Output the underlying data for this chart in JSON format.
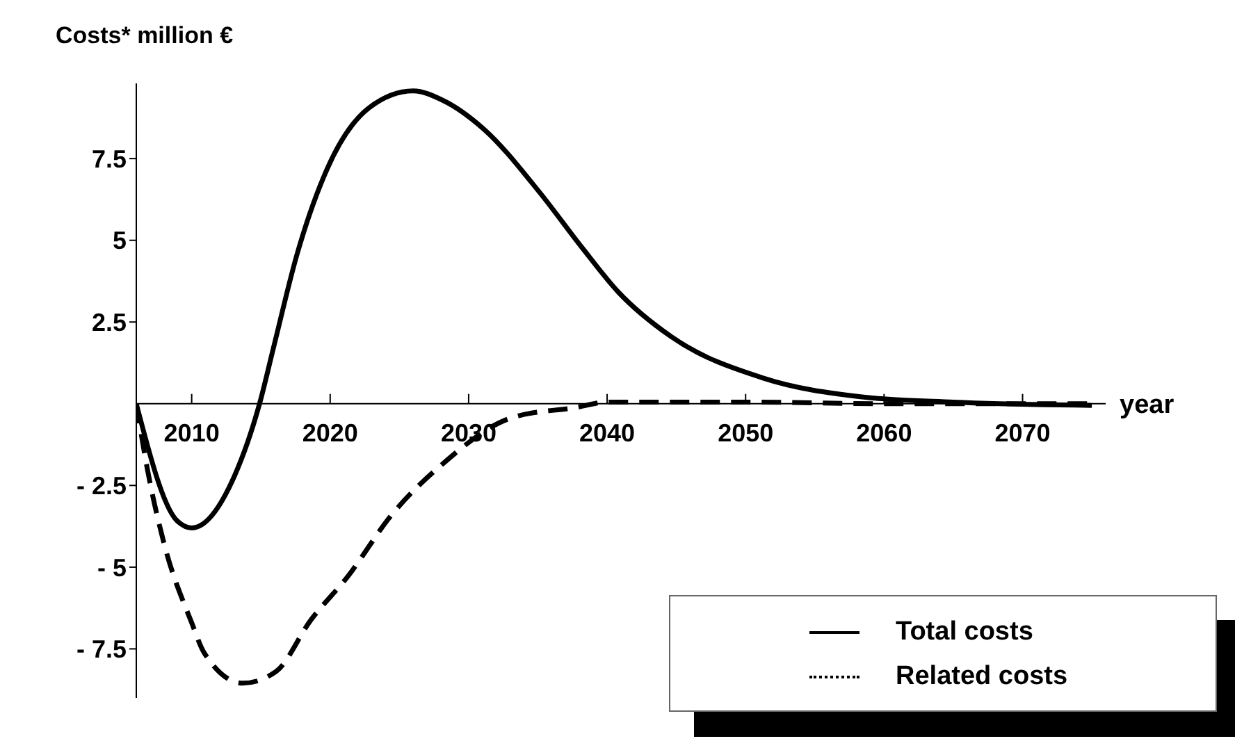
{
  "chart_data": {
    "type": "line",
    "title": "Costs* million €",
    "xlabel": "year",
    "xlim": [
      2006,
      2076
    ],
    "xticks": [
      2010,
      2020,
      2030,
      2040,
      2050,
      2060,
      2070
    ],
    "ylim": [
      -9,
      9.8
    ],
    "yticks": [
      {
        "value": -7.5,
        "label": "- 7.5"
      },
      {
        "value": -5,
        "label": "- 5"
      },
      {
        "value": -2.5,
        "label": "- 2.5"
      },
      7.5,
      5,
      2.5
    ],
    "legend": "bottom right",
    "grid": false,
    "marker": "none",
    "series": [
      {
        "name": "Total costs",
        "color": "#000000",
        "line_style": "solid",
        "x": [
          2006,
          2008.9,
          2010,
          2013.1,
          2014.9,
          2015.9,
          2017.6,
          2019.8,
          2022.8,
          2026,
          2028.1,
          2031.1,
          2035.1,
          2038.2,
          2040.8,
          2044.6,
          2051.3,
          2058.4,
          2065,
          2075
        ],
        "values": [
          0,
          -3.56,
          -3.8,
          -2.2,
          0,
          1.7,
          4.56,
          7.2,
          9.05,
          9.57,
          9.29,
          8.4,
          6.48,
          4.77,
          3.42,
          2.06,
          0.78,
          0.21,
          0.05,
          -0.05
        ]
      },
      {
        "name": "Related costs",
        "color": "#000000",
        "line_style": "dashed",
        "x": [
          2006,
          2006.8,
          2008,
          2010,
          2010.9,
          2013.7,
          2016.1,
          2018.6,
          2021.3,
          2024.4,
          2028.1,
          2033.1,
          2037.8,
          2040,
          2050,
          2060,
          2075
        ],
        "values": [
          0,
          -2,
          -4.27,
          -6.7,
          -7.62,
          -8.55,
          -8.19,
          -6.62,
          -5.27,
          -3.42,
          -1.85,
          -0.43,
          -0.11,
          0.05,
          0.05,
          0,
          0
        ]
      }
    ]
  }
}
